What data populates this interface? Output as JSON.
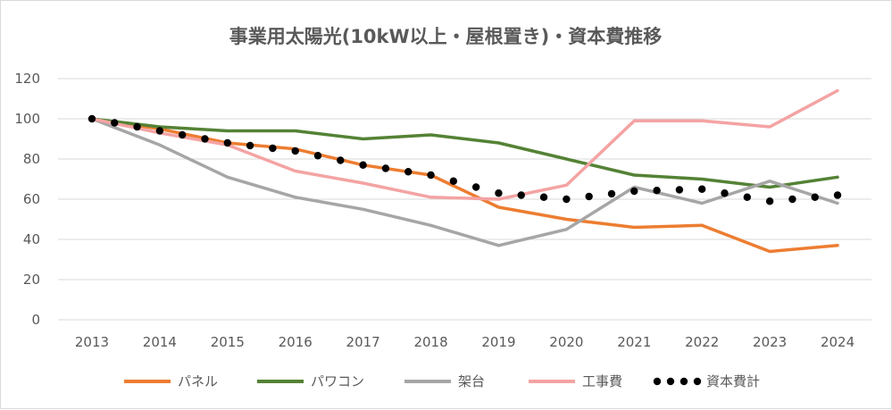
{
  "chart_data": {
    "type": "line",
    "title": "事業用太陽光(10kW以上・屋根置き)・資本費推移",
    "xlabel": "",
    "ylabel": "",
    "x": [
      "2013",
      "2014",
      "2015",
      "2016",
      "2017",
      "2018",
      "2019",
      "2020",
      "2021",
      "2022",
      "2023",
      "2024"
    ],
    "ylim": [
      0,
      120
    ],
    "yticks": [
      "0",
      "20",
      "40",
      "60",
      "80",
      "100",
      "120"
    ],
    "grid": true,
    "legend_position": "bottom",
    "series": [
      {
        "name": "パネル",
        "color": "#ed7d31",
        "style": "solid",
        "values": [
          100,
          95,
          88,
          85,
          77,
          72,
          56,
          50,
          46,
          47,
          34,
          37
        ]
      },
      {
        "name": "パワコン",
        "color": "#548235",
        "style": "solid",
        "values": [
          100,
          96,
          94,
          94,
          90,
          92,
          88,
          80,
          72,
          70,
          66,
          71
        ]
      },
      {
        "name": "架台",
        "color": "#a6a6a6",
        "style": "solid",
        "values": [
          100,
          87,
          71,
          61,
          55,
          47,
          37,
          45,
          66,
          58,
          69,
          58
        ]
      },
      {
        "name": "工事費",
        "color": "#f4a3a3",
        "style": "solid",
        "values": [
          100,
          93,
          87,
          74,
          68,
          61,
          60,
          67,
          99,
          99,
          96,
          114
        ]
      },
      {
        "name": "資本費計",
        "color": "#000000",
        "style": "dotted",
        "values": [
          100,
          94,
          88,
          84,
          77,
          72,
          63,
          60,
          64,
          65,
          59,
          62
        ]
      }
    ]
  }
}
